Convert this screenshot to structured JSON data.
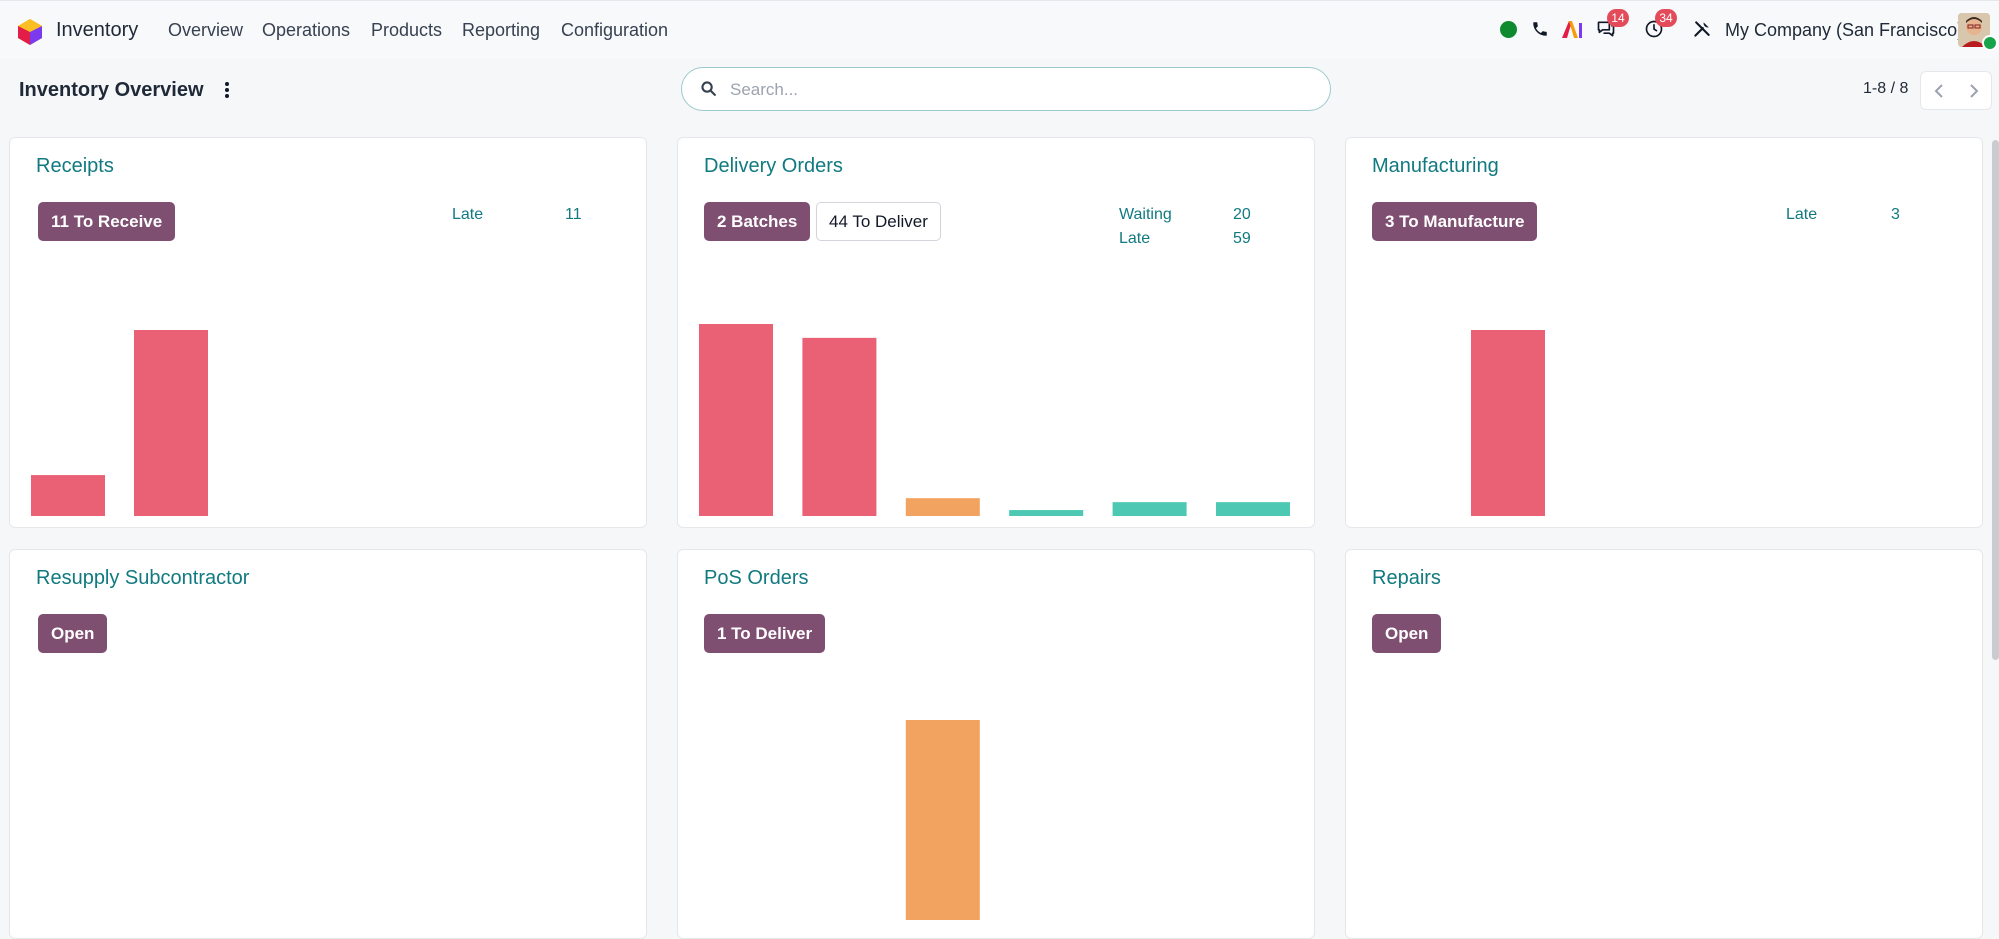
{
  "app": {
    "name": "Inventory"
  },
  "menu": [
    "Overview",
    "Operations",
    "Products",
    "Reporting",
    "Configuration"
  ],
  "systray": {
    "messages_count": "14",
    "activities_count": "34",
    "company": "My Company (San Francisco)"
  },
  "control_panel": {
    "title": "Inventory Overview",
    "search_placeholder": "Search...",
    "pager": "1-8 / 8"
  },
  "colors": {
    "accent": "#117a80",
    "primary_button": "#7f4f72",
    "bar_late": "#ea6075",
    "bar_soon": "#f2a35f",
    "bar_future": "#4cc8b3"
  },
  "cards": [
    {
      "title": "Receipts",
      "buttons": [
        {
          "label": "11 To Receive",
          "style": "primary"
        }
      ],
      "stats": [
        {
          "label": "Late",
          "value": "11"
        }
      ],
      "chart_data": {
        "type": "bar",
        "values": [
          2.2,
          10
        ],
        "colors": [
          "bar_late",
          "bar_late"
        ]
      }
    },
    {
      "title": "Delivery Orders",
      "buttons": [
        {
          "label": "2 Batches",
          "style": "primary"
        },
        {
          "label": "44 To Deliver",
          "style": "secondary"
        }
      ],
      "stats": [
        {
          "label": "Waiting",
          "value": "20"
        },
        {
          "label": "Late",
          "value": "59"
        }
      ],
      "chart_data": {
        "type": "bar",
        "values": [
          9.7,
          9,
          0.9,
          0.3,
          0.7,
          0.7
        ],
        "colors": [
          "bar_late",
          "bar_late",
          "bar_soon",
          "bar_future",
          "bar_future",
          "bar_future"
        ]
      }
    },
    {
      "title": "Manufacturing",
      "buttons": [
        {
          "label": "3 To Manufacture",
          "style": "primary"
        }
      ],
      "stats": [
        {
          "label": "Late",
          "value": "3"
        }
      ],
      "chart_data": {
        "type": "bar",
        "values": [
          0,
          10
        ],
        "colors": [
          "bar_late",
          "bar_late"
        ]
      }
    },
    {
      "title": "Resupply Subcontractor",
      "buttons": [
        {
          "label": "Open",
          "style": "primary"
        }
      ],
      "stats": []
    },
    {
      "title": "PoS Orders",
      "buttons": [
        {
          "label": "1 To Deliver",
          "style": "primary"
        }
      ],
      "stats": [],
      "chart_data": {
        "type": "bar",
        "values": [
          0,
          0,
          10
        ],
        "colors": [
          "bar_soon",
          "bar_soon",
          "bar_soon"
        ]
      }
    },
    {
      "title": "Repairs",
      "buttons": [
        {
          "label": "Open",
          "style": "primary"
        }
      ],
      "stats": []
    }
  ]
}
